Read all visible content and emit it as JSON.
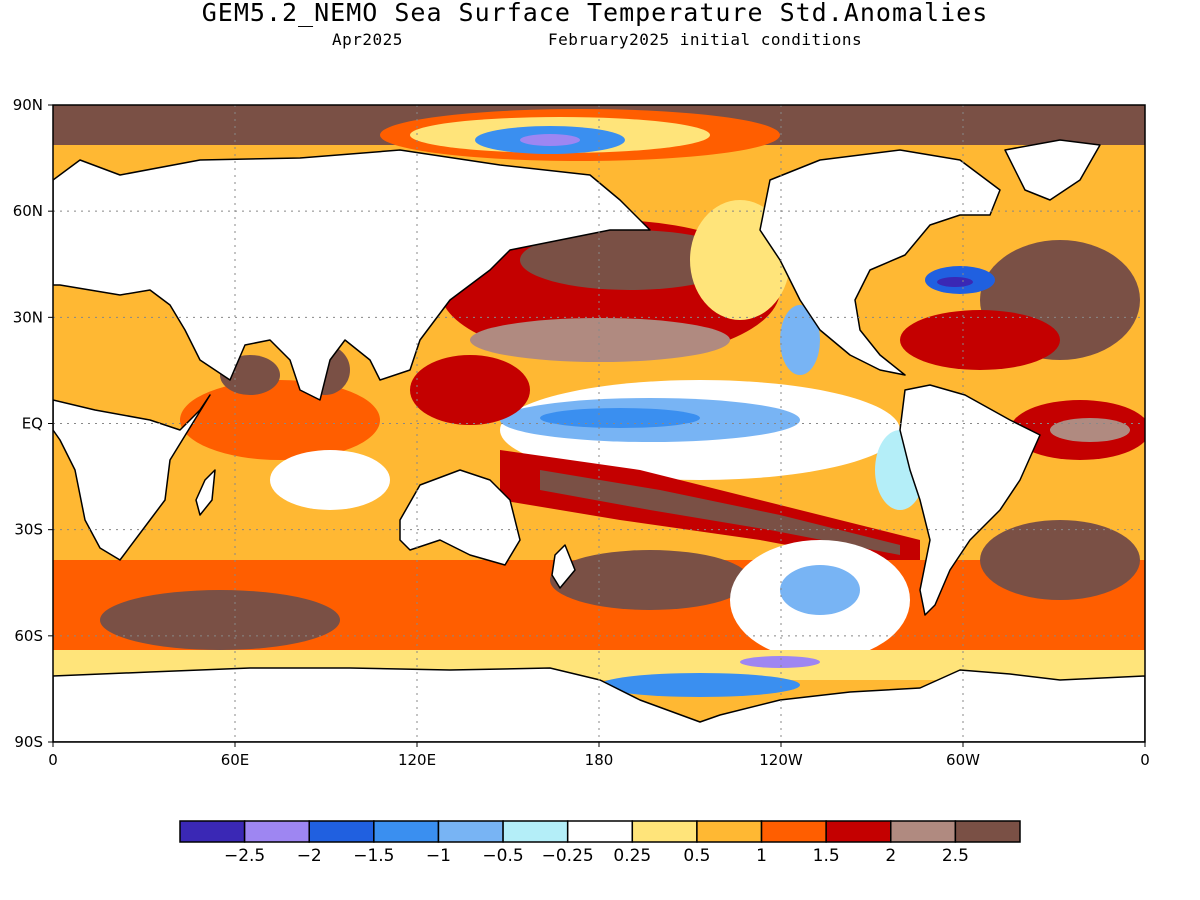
{
  "title": "GEM5.2_NEMO Sea Surface Temperature Std.Anomalies",
  "subtitle_left": "Apr2025",
  "subtitle_right": "February2025 initial conditions",
  "map": {
    "lon_range": [
      0,
      360
    ],
    "lat_range": [
      -90,
      90
    ],
    "grid": true,
    "lat_ticks": [
      {
        "value": 90,
        "label": "90N"
      },
      {
        "value": 60,
        "label": "60N"
      },
      {
        "value": 30,
        "label": "30N"
      },
      {
        "value": 0,
        "label": "EQ"
      },
      {
        "value": -30,
        "label": "30S"
      },
      {
        "value": -60,
        "label": "60S"
      },
      {
        "value": -90,
        "label": "90S"
      }
    ],
    "lon_ticks": [
      {
        "value": 0,
        "label": "0"
      },
      {
        "value": 60,
        "label": "60E"
      },
      {
        "value": 120,
        "label": "120E"
      },
      {
        "value": 180,
        "label": "180"
      },
      {
        "value": 240,
        "label": "120W"
      },
      {
        "value": 300,
        "label": "60W"
      },
      {
        "value": 360,
        "label": "0"
      }
    ],
    "land_color": "#ffffff",
    "coast_color": "#000000"
  },
  "legend": {
    "colors": [
      "#3a28b5",
      "#9e86f2",
      "#2060e0",
      "#3a8ff0",
      "#78b4f4",
      "#b4eef8",
      "#ffffff",
      "#ffe47a",
      "#ffb833",
      "#ff5e00",
      "#c40000",
      "#b08a80",
      "#7a5045"
    ],
    "labels": [
      "-2.5",
      "-2",
      "-1.5",
      "-1",
      "-0.5",
      "-0.25",
      "0.25",
      "0.5",
      "1",
      "1.5",
      "2",
      "2.5"
    ]
  }
}
